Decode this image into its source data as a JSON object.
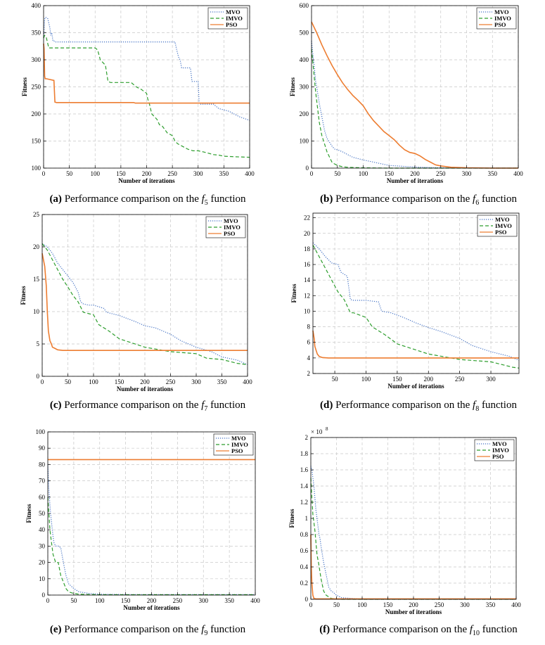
{
  "colors": {
    "MVO": "#4472c4",
    "IMVO": "#2e9e2e",
    "PSO": "#ed7d31",
    "grid": "#c8c8c8"
  },
  "chart_data": [
    {
      "id": "a",
      "type": "line",
      "xlabel": "Number of iterations",
      "ylabel": "Fitness",
      "xlim": [
        0,
        400
      ],
      "ylim": [
        100,
        400
      ],
      "xticks": [
        0,
        50,
        100,
        150,
        200,
        250,
        300,
        350,
        400
      ],
      "yticks": [
        100,
        150,
        200,
        250,
        300,
        350,
        400
      ],
      "legend": [
        "MVO",
        "IMVO",
        "PSO"
      ],
      "caption": {
        "label": "(a)",
        "text": "Performance comparison on the",
        "fn": "f",
        "sub": "5",
        "tail": "function"
      },
      "series": [
        {
          "name": "MVO",
          "style": "dotted",
          "x": [
            0,
            2,
            3,
            5,
            8,
            12,
            14,
            16,
            18,
            20,
            22,
            255,
            258,
            262,
            265,
            268,
            285,
            288,
            300,
            302,
            305,
            330,
            340,
            360,
            380,
            400
          ],
          "y": [
            340,
            375,
            378,
            378,
            376,
            360,
            345,
            350,
            335,
            335,
            333,
            333,
            320,
            305,
            300,
            285,
            285,
            260,
            260,
            220,
            218,
            218,
            210,
            205,
            195,
            188
          ]
        },
        {
          "name": "IMVO",
          "style": "dashed",
          "x": [
            0,
            2,
            5,
            8,
            10,
            100,
            105,
            110,
            120,
            125,
            130,
            170,
            180,
            190,
            200,
            202,
            205,
            210,
            220,
            225,
            230,
            240,
            250,
            255,
            260,
            270,
            280,
            290,
            300,
            310,
            330,
            340,
            350,
            370,
            400
          ],
          "y": [
            340,
            345,
            342,
            330,
            322,
            322,
            318,
            300,
            290,
            260,
            258,
            258,
            250,
            245,
            238,
            228,
            220,
            200,
            190,
            180,
            178,
            165,
            160,
            150,
            145,
            140,
            135,
            132,
            132,
            130,
            125,
            124,
            122,
            121,
            120
          ]
        },
        {
          "name": "PSO",
          "style": "solid",
          "x": [
            0,
            1,
            2,
            3,
            5,
            20,
            22,
            25,
            30,
            50,
            100,
            150,
            175,
            178,
            200,
            250,
            300,
            350,
            400
          ],
          "y": [
            330,
            320,
            270,
            265,
            265,
            262,
            222,
            221,
            221,
            221,
            221,
            221,
            221,
            220,
            220,
            220,
            220,
            220,
            220
          ]
        }
      ]
    },
    {
      "id": "b",
      "type": "line",
      "xlabel": "Number of iterations",
      "ylabel": "Fitness",
      "xlim": [
        0,
        400
      ],
      "ylim": [
        0,
        600
      ],
      "xticks": [
        0,
        50,
        100,
        150,
        200,
        250,
        300,
        350,
        400
      ],
      "yticks": [
        0,
        100,
        200,
        300,
        400,
        500,
        600
      ],
      "legend": [
        "MVO",
        "IMVO",
        "PSO"
      ],
      "caption": {
        "label": "(b)",
        "text": "Performance comparison on the",
        "fn": "f",
        "sub": "6",
        "tail": "function"
      },
      "series": [
        {
          "name": "MVO",
          "style": "dotted",
          "x": [
            0,
            2,
            5,
            8,
            10,
            15,
            20,
            25,
            30,
            35,
            40,
            45,
            50,
            60,
            70,
            80,
            100,
            120,
            150,
            200,
            250,
            300,
            400
          ],
          "y": [
            470,
            430,
            380,
            320,
            300,
            240,
            190,
            140,
            110,
            95,
            80,
            70,
            68,
            60,
            50,
            40,
            30,
            22,
            10,
            4,
            1,
            0,
            0
          ]
        },
        {
          "name": "IMVO",
          "style": "dashed",
          "x": [
            0,
            2,
            5,
            8,
            10,
            15,
            20,
            25,
            30,
            35,
            40,
            50,
            60,
            70,
            100,
            150,
            400
          ],
          "y": [
            440,
            400,
            340,
            280,
            250,
            170,
            120,
            90,
            60,
            40,
            20,
            10,
            5,
            3,
            1,
            0,
            0
          ]
        },
        {
          "name": "PSO",
          "style": "solid",
          "x": [
            0,
            10,
            20,
            30,
            40,
            50,
            60,
            70,
            80,
            90,
            100,
            110,
            120,
            130,
            140,
            150,
            160,
            170,
            180,
            190,
            200,
            210,
            220,
            230,
            240,
            250,
            270,
            300,
            350,
            400
          ],
          "y": [
            540,
            500,
            455,
            415,
            378,
            345,
            315,
            290,
            268,
            250,
            230,
            200,
            175,
            155,
            135,
            120,
            105,
            85,
            68,
            58,
            54,
            45,
            32,
            22,
            12,
            8,
            3,
            1,
            0,
            0
          ]
        }
      ]
    },
    {
      "id": "c",
      "type": "line",
      "xlabel": "Number of iterations",
      "ylabel": "Fitness",
      "xlim": [
        0,
        400
      ],
      "ylim": [
        0,
        25
      ],
      "xticks": [
        0,
        50,
        100,
        150,
        200,
        250,
        300,
        350,
        400
      ],
      "yticks": [
        0,
        5,
        10,
        15,
        20,
        25
      ],
      "legend": [
        "MVO",
        "IMVO",
        "PSO"
      ],
      "caption": {
        "label": "(c)",
        "text": "Performance comparison on the",
        "fn": "f",
        "sub": "7",
        "tail": "function"
      },
      "series": [
        {
          "name": "MVO",
          "style": "dotted",
          "x": [
            0,
            10,
            20,
            30,
            40,
            50,
            60,
            70,
            75,
            80,
            90,
            100,
            120,
            125,
            140,
            150,
            180,
            200,
            220,
            250,
            270,
            300,
            330,
            350,
            380,
            400
          ],
          "y": [
            20.5,
            20,
            19,
            17.5,
            16.5,
            15.5,
            14.5,
            13,
            11.5,
            11.2,
            11,
            11,
            10.5,
            9.9,
            9.6,
            9.4,
            8.5,
            7.8,
            7.5,
            6.5,
            5.5,
            4.5,
            3.8,
            3,
            2.5,
            1.8
          ]
        },
        {
          "name": "IMVO",
          "style": "dashed",
          "x": [
            0,
            10,
            20,
            30,
            40,
            50,
            60,
            70,
            80,
            100,
            110,
            130,
            150,
            200,
            250,
            300,
            320,
            350,
            380,
            400
          ],
          "y": [
            20.5,
            19.5,
            18,
            16.5,
            15,
            13.8,
            12.5,
            11.5,
            9.9,
            9.5,
            8,
            7,
            5.8,
            4.5,
            3.8,
            3.5,
            2.8,
            2.6,
            2,
            1.8
          ]
        },
        {
          "name": "PSO",
          "style": "solid",
          "x": [
            0,
            5,
            8,
            10,
            12,
            15,
            18,
            20,
            25,
            30,
            40,
            50,
            100,
            150,
            200,
            250,
            300,
            350,
            400
          ],
          "y": [
            19,
            17,
            14,
            10,
            7,
            5.5,
            5,
            4.5,
            4.3,
            4.1,
            4,
            4,
            4,
            4,
            4,
            4,
            4,
            4,
            4
          ]
        }
      ]
    },
    {
      "id": "d",
      "type": "line",
      "xlabel": "Number of iterations",
      "ylabel": "Fitness",
      "xlim": [
        15,
        345
      ],
      "ylim": [
        2,
        22.6
      ],
      "xticks": [
        50,
        100,
        150,
        200,
        250,
        300
      ],
      "yticks": [
        2,
        4,
        6,
        8,
        10,
        12,
        14,
        16,
        18,
        20,
        22
      ],
      "legend": [
        "MVO",
        "IMVO",
        "PSO"
      ],
      "caption": {
        "label": "(d)",
        "text": "Performance comparison on the",
        "fn": "f",
        "sub": "8",
        "tail": "function"
      },
      "series": [
        {
          "name": "MVO",
          "style": "dotted",
          "x": [
            15,
            25,
            35,
            45,
            55,
            60,
            70,
            75,
            80,
            100,
            120,
            125,
            140,
            160,
            180,
            200,
            220,
            250,
            270,
            300,
            330,
            345
          ],
          "y": [
            18.8,
            18,
            17,
            16.2,
            16,
            15,
            14.5,
            11.5,
            11.4,
            11.4,
            11.2,
            10,
            9.8,
            9.2,
            8.5,
            7.9,
            7.4,
            6.5,
            5.6,
            4.8,
            4.2,
            3.7
          ]
        },
        {
          "name": "IMVO",
          "style": "dashed",
          "x": [
            15,
            25,
            35,
            45,
            55,
            65,
            75,
            80,
            100,
            110,
            130,
            150,
            200,
            250,
            300,
            320,
            335,
            345
          ],
          "y": [
            18.5,
            17,
            15.5,
            14,
            12.5,
            11.5,
            9.8,
            9.8,
            9.2,
            8,
            7,
            5.8,
            4.5,
            3.8,
            3.5,
            3.1,
            2.8,
            2.7
          ]
        },
        {
          "name": "PSO",
          "style": "solid",
          "x": [
            15,
            17,
            18,
            20,
            22,
            25,
            30,
            40,
            50,
            100,
            150,
            200,
            250,
            300,
            345
          ],
          "y": [
            7.5,
            6.5,
            5.5,
            5,
            4.5,
            4.2,
            4.05,
            4,
            4,
            4,
            4,
            4,
            4,
            4,
            4
          ]
        }
      ]
    },
    {
      "id": "e",
      "type": "line",
      "xlabel": "Number of iterations",
      "ylabel": "Fitness",
      "xlim": [
        0,
        400
      ],
      "ylim": [
        0,
        100
      ],
      "xticks": [
        0,
        50,
        100,
        150,
        200,
        250,
        300,
        350,
        400
      ],
      "yticks": [
        0,
        10,
        20,
        30,
        40,
        50,
        60,
        70,
        80,
        90,
        100
      ],
      "legend": [
        "MVO",
        "IMVO",
        "PSO"
      ],
      "caption": {
        "label": "(e)",
        "text": "Performance comparison on the",
        "fn": "f",
        "sub": "9",
        "tail": "function"
      },
      "series": [
        {
          "name": "MVO",
          "style": "dotted",
          "x": [
            0,
            2,
            4,
            6,
            8,
            10,
            12,
            15,
            20,
            25,
            30,
            35,
            40,
            50,
            60,
            70,
            80,
            100,
            150,
            400
          ],
          "y": [
            80,
            65,
            55,
            48,
            42,
            36,
            32,
            30,
            30,
            29,
            20,
            12,
            7,
            4,
            2,
            1.5,
            1,
            0.5,
            0.3,
            0.3
          ]
        },
        {
          "name": "IMVO",
          "style": "dashed",
          "x": [
            0,
            2,
            4,
            6,
            8,
            10,
            15,
            20,
            25,
            30,
            35,
            40,
            50,
            60,
            100,
            400
          ],
          "y": [
            60,
            50,
            40,
            35,
            30,
            25,
            20,
            20,
            12,
            8,
            4,
            2,
            1,
            0.5,
            0.2,
            0.2
          ]
        },
        {
          "name": "PSO",
          "style": "solid",
          "x": [
            0,
            400
          ],
          "y": [
            83,
            83
          ]
        }
      ]
    },
    {
      "id": "f",
      "type": "line",
      "xlabel": "Number of iterations",
      "ylabel": "Fitness",
      "xlim": [
        0,
        400
      ],
      "ylim": [
        0,
        2
      ],
      "xticks": [
        0,
        50,
        100,
        150,
        200,
        250,
        300,
        350,
        400
      ],
      "yticks": [
        0,
        0.2,
        0.4,
        0.6,
        0.8,
        1,
        1.2,
        1.4,
        1.6,
        1.8,
        2
      ],
      "multiplier": "× 10",
      "multiplier_exp": "8",
      "legend": [
        "MVO",
        "IMVO",
        "PSO"
      ],
      "caption": {
        "label": "(f)",
        "text": "Performance comparison on the",
        "fn": "f",
        "sub": "10",
        "tail": "function"
      },
      "series": [
        {
          "name": "MVO",
          "style": "dotted",
          "x": [
            0,
            2,
            4,
            6,
            8,
            10,
            12,
            14,
            16,
            18,
            20,
            25,
            30,
            35,
            40,
            45,
            50,
            60,
            80,
            100,
            400
          ],
          "y": [
            1.65,
            1.6,
            1.5,
            1.4,
            1.25,
            1.1,
            1.0,
            0.9,
            0.8,
            0.75,
            0.65,
            0.45,
            0.3,
            0.15,
            0.1,
            0.08,
            0.05,
            0.02,
            0.01,
            0,
            0
          ]
        },
        {
          "name": "IMVO",
          "style": "dashed",
          "x": [
            0,
            2,
            4,
            6,
            8,
            10,
            12,
            15,
            20,
            25,
            30,
            40,
            60,
            400
          ],
          "y": [
            1.5,
            1.25,
            1.05,
            0.95,
            0.85,
            0.7,
            0.55,
            0.45,
            0.25,
            0.1,
            0.05,
            0.01,
            0,
            0
          ]
        },
        {
          "name": "PSO",
          "style": "solid",
          "x": [
            0,
            1,
            2,
            4,
            6,
            10,
            400
          ],
          "y": [
            0.8,
            0.4,
            0.2,
            0.05,
            0.01,
            0.005,
            0.005
          ]
        }
      ]
    }
  ]
}
